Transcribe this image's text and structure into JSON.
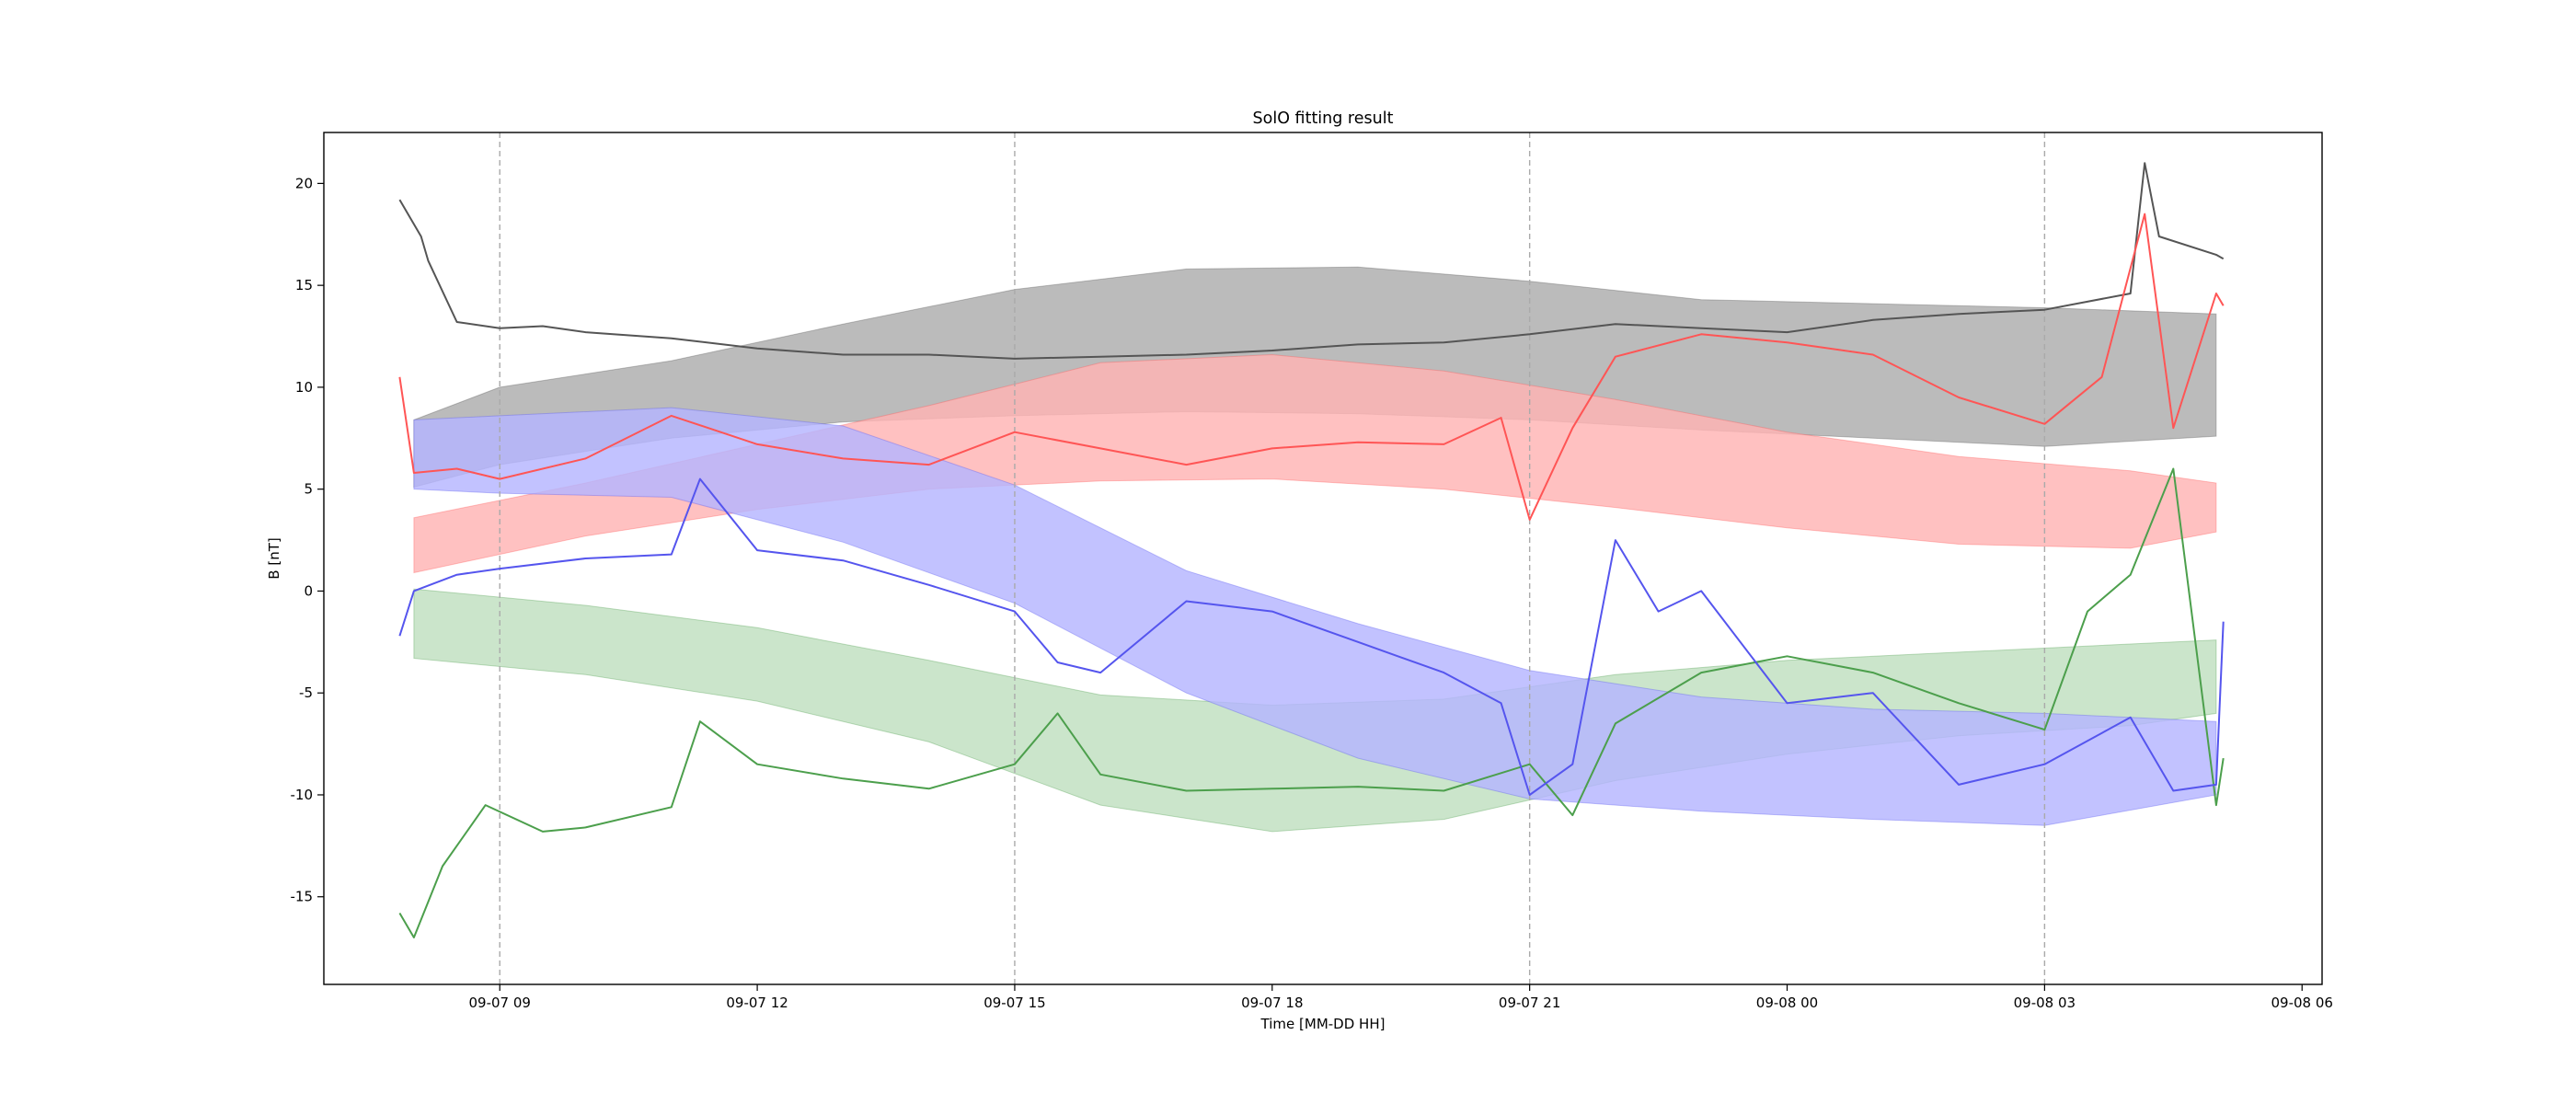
{
  "chart_data": {
    "type": "line",
    "title": "SolO fitting result",
    "xlabel": "Time [MM-DD HH]",
    "ylabel": "B [nT]",
    "xlim": [
      "2023-09-07 06:57",
      "2023-09-08 06:14"
    ],
    "ylim": [
      -19.3,
      22.5
    ],
    "x_ticks": [
      "09-07 09",
      "09-07 12",
      "09-07 15",
      "09-07 18",
      "09-07 21",
      "09-08 00",
      "09-08 03",
      "09-08 06"
    ],
    "y_ticks": [
      -15,
      -10,
      -5,
      0,
      5,
      10,
      15,
      20
    ],
    "vertical_markers": [
      "09-07 09",
      "09-07 15",
      "09-07 21",
      "09-08 03"
    ],
    "grid": false,
    "colors": {
      "total": "#555555",
      "total_band": "#bbbbbb",
      "red": "#ff5555",
      "red_band": "#ffb3b3",
      "green": "#4c9f4c",
      "green_band": "#bfdfbf",
      "blue": "#5555ee",
      "blue_band": "#b4b4ff",
      "marker": "#aaaaaa"
    },
    "bands": [
      {
        "color": "gray",
        "x": [
          "09-07 08:00",
          "09-07 09:00",
          "09-07 11:00",
          "09-07 13:00",
          "09-07 15:00",
          "09-07 17:00",
          "09-07 19:00",
          "09-07 21:00",
          "09-07 23:00",
          "09-08 01:00",
          "09-08 03:00",
          "09-08 05:00"
        ],
        "upper": [
          8.4,
          10.0,
          11.3,
          13.1,
          14.8,
          15.8,
          15.9,
          15.2,
          14.3,
          14.1,
          13.9,
          13.6
        ],
        "lower": [
          5.1,
          6.2,
          7.5,
          8.3,
          8.6,
          8.8,
          8.7,
          8.4,
          7.9,
          7.5,
          7.1,
          7.6
        ]
      },
      {
        "color": "red",
        "x": [
          "09-07 08:00",
          "09-07 10:00",
          "09-07 12:00",
          "09-07 14:00",
          "09-07 16:00",
          "09-07 18:00",
          "09-07 20:00",
          "09-07 22:00",
          "09-08 00:00",
          "09-08 02:00",
          "09-08 04:00",
          "09-08 05:00"
        ],
        "upper": [
          3.6,
          5.3,
          7.2,
          9.1,
          11.2,
          11.6,
          10.8,
          9.4,
          7.8,
          6.6,
          5.9,
          5.3
        ],
        "lower": [
          0.9,
          2.7,
          4.0,
          5.0,
          5.4,
          5.5,
          5.0,
          4.1,
          3.1,
          2.3,
          2.1,
          2.9
        ]
      },
      {
        "color": "green",
        "x": [
          "09-07 08:00",
          "09-07 10:00",
          "09-07 12:00",
          "09-07 14:00",
          "09-07 16:00",
          "09-07 18:00",
          "09-07 20:00",
          "09-07 22:00",
          "09-08 00:00",
          "09-08 02:00",
          "09-08 04:00",
          "09-08 05:00"
        ],
        "upper": [
          0.1,
          -0.7,
          -1.8,
          -3.4,
          -5.1,
          -5.6,
          -5.3,
          -4.1,
          -3.4,
          -3.0,
          -2.6,
          -2.4
        ],
        "lower": [
          -3.3,
          -4.1,
          -5.4,
          -7.4,
          -10.5,
          -11.8,
          -11.2,
          -9.3,
          -8.0,
          -7.1,
          -6.6,
          -6.0
        ]
      },
      {
        "color": "blue",
        "x": [
          "09-07 08:00",
          "09-07 09:00",
          "09-07 11:00",
          "09-07 13:00",
          "09-07 15:00",
          "09-07 17:00",
          "09-07 19:00",
          "09-07 21:00",
          "09-07 23:00",
          "09-08 01:00",
          "09-08 03:00",
          "09-08 05:00"
        ],
        "upper": [
          8.4,
          8.6,
          9.0,
          8.1,
          5.2,
          1.0,
          -1.6,
          -3.9,
          -5.2,
          -5.8,
          -6.0,
          -6.4
        ],
        "lower": [
          5.0,
          4.8,
          4.6,
          2.4,
          -0.6,
          -5.0,
          -8.2,
          -10.2,
          -10.8,
          -11.2,
          -11.5,
          -10.0
        ]
      }
    ],
    "series": [
      {
        "color": "gray",
        "x": [
          "09-07 07:50",
          "09-07 08:05",
          "09-07 08:10",
          "09-07 08:30",
          "09-07 09:00",
          "09-07 09:30",
          "09-07 10:00",
          "09-07 11:00",
          "09-07 12:00",
          "09-07 13:00",
          "09-07 14:00",
          "09-07 15:00",
          "09-07 16:00",
          "09-07 17:00",
          "09-07 18:00",
          "09-07 19:00",
          "09-07 20:00",
          "09-07 21:00",
          "09-07 22:00",
          "09-07 23:00",
          "09-08 00:00",
          "09-08 01:00",
          "09-08 02:00",
          "09-08 03:00",
          "09-08 04:00",
          "09-08 04:10",
          "09-08 04:20",
          "09-08 05:00",
          "09-08 05:05"
        ],
        "y": [
          19.2,
          17.4,
          16.2,
          13.2,
          12.9,
          13.0,
          12.7,
          12.4,
          11.9,
          11.6,
          11.6,
          11.4,
          11.5,
          11.6,
          11.8,
          12.1,
          12.2,
          12.6,
          13.1,
          12.9,
          12.7,
          13.3,
          13.6,
          13.8,
          14.6,
          21.0,
          17.4,
          16.5,
          16.3
        ]
      },
      {
        "color": "red",
        "x": [
          "09-07 07:50",
          "09-07 08:00",
          "09-07 08:30",
          "09-07 09:00",
          "09-07 10:00",
          "09-07 11:00",
          "09-07 12:00",
          "09-07 13:00",
          "09-07 14:00",
          "09-07 15:00",
          "09-07 16:00",
          "09-07 17:00",
          "09-07 18:00",
          "09-07 19:00",
          "09-07 20:00",
          "09-07 20:40",
          "09-07 21:00",
          "09-07 21:30",
          "09-07 22:00",
          "09-07 23:00",
          "09-08 00:00",
          "09-08 01:00",
          "09-08 02:00",
          "09-08 03:00",
          "09-08 03:40",
          "09-08 04:10",
          "09-08 04:30",
          "09-08 05:00",
          "09-08 05:05"
        ],
        "y": [
          10.5,
          5.8,
          6.0,
          5.5,
          6.5,
          8.6,
          7.2,
          6.5,
          6.2,
          7.8,
          7.0,
          6.2,
          7.0,
          7.3,
          7.2,
          8.5,
          3.5,
          8.0,
          11.5,
          12.6,
          12.2,
          11.6,
          9.5,
          8.2,
          10.5,
          18.5,
          8.0,
          14.6,
          14.0
        ]
      },
      {
        "color": "green",
        "x": [
          "09-07 07:50",
          "09-07 08:00",
          "09-07 08:20",
          "09-07 08:50",
          "09-07 09:30",
          "09-07 10:00",
          "09-07 11:00",
          "09-07 11:20",
          "09-07 12:00",
          "09-07 13:00",
          "09-07 14:00",
          "09-07 15:00",
          "09-07 15:30",
          "09-07 16:00",
          "09-07 17:00",
          "09-07 18:00",
          "09-07 19:00",
          "09-07 20:00",
          "09-07 21:00",
          "09-07 21:30",
          "09-07 22:00",
          "09-07 23:00",
          "09-08 00:00",
          "09-08 01:00",
          "09-08 02:00",
          "09-08 03:00",
          "09-08 03:30",
          "09-08 04:00",
          "09-08 04:30",
          "09-08 05:00",
          "09-08 05:05"
        ],
        "y": [
          -15.8,
          -17.0,
          -13.5,
          -10.5,
          -11.8,
          -11.6,
          -10.6,
          -6.4,
          -8.5,
          -9.2,
          -9.7,
          -8.5,
          -6.0,
          -9.0,
          -9.8,
          -9.7,
          -9.6,
          -9.8,
          -8.5,
          -11.0,
          -6.5,
          -4.0,
          -3.2,
          -4.0,
          -5.5,
          -6.8,
          -1.0,
          0.8,
          6.0,
          -10.5,
          -8.2
        ]
      },
      {
        "color": "blue",
        "x": [
          "09-07 07:50",
          "09-07 08:00",
          "09-07 08:30",
          "09-07 09:00",
          "09-07 10:00",
          "09-07 11:00",
          "09-07 11:20",
          "09-07 12:00",
          "09-07 13:00",
          "09-07 14:00",
          "09-07 15:00",
          "09-07 15:30",
          "09-07 16:00",
          "09-07 17:00",
          "09-07 18:00",
          "09-07 19:00",
          "09-07 20:00",
          "09-07 20:40",
          "09-07 21:00",
          "09-07 21:30",
          "09-07 22:00",
          "09-07 22:30",
          "09-07 23:00",
          "09-08 00:00",
          "09-08 01:00",
          "09-08 02:00",
          "09-08 03:00",
          "09-08 04:00",
          "09-08 04:30",
          "09-08 05:00",
          "09-08 05:05"
        ],
        "y": [
          -2.2,
          0.0,
          0.8,
          1.1,
          1.6,
          1.8,
          5.5,
          2.0,
          1.5,
          0.3,
          -1.0,
          -3.5,
          -4.0,
          -0.5,
          -1.0,
          -2.5,
          -4.0,
          -5.5,
          -10.0,
          -8.5,
          2.5,
          -1.0,
          0.0,
          -5.5,
          -5.0,
          -9.5,
          -8.5,
          -6.2,
          -9.8,
          -9.5,
          -1.5
        ]
      }
    ]
  }
}
